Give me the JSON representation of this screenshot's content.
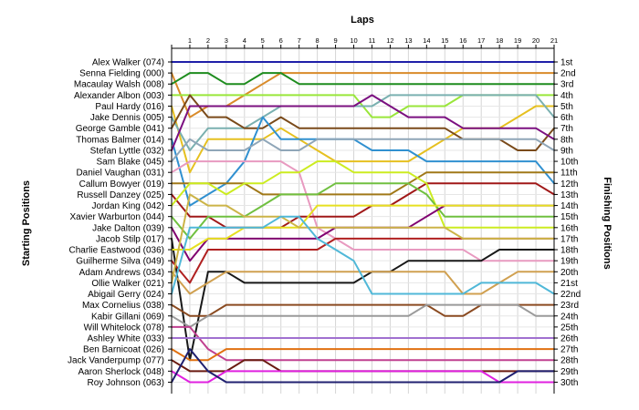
{
  "chart_data": {
    "type": "line",
    "title": "Laps",
    "ylabel_left": "Starting Positions",
    "ylabel_right": "Finishing Positions",
    "x": [
      0,
      1,
      2,
      3,
      4,
      5,
      6,
      7,
      8,
      9,
      10,
      11,
      12,
      13,
      14,
      15,
      16,
      17,
      18,
      19,
      20,
      21
    ],
    "x_tick_labels": [
      "1",
      "2",
      "3",
      "4",
      "5",
      "6",
      "7",
      "8",
      "9",
      "10",
      "11",
      "12",
      "13",
      "14",
      "15",
      "16",
      "17",
      "18",
      "19",
      "20",
      "21"
    ],
    "starting_labels": [
      "Alex Walker (074)",
      "Senna Fielding (000)",
      "Macaulay Walsh (008)",
      "Alexander Albon (003)",
      "Paul Hardy (016)",
      "Jake Dennis (005)",
      "George Gamble (041)",
      "Thomas Balmer (014)",
      "Stefan Lyttle (032)",
      "Sam Blake (045)",
      "Daniel Vaughan (031)",
      "Callum Bowyer (019)",
      "Russell Danzey (025)",
      "Jordan King (042)",
      "Xavier Warburton (044)",
      "Jake Dalton (039)",
      "Jacob Stilp (017)",
      "Charlie Eastwood (036)",
      "Guilherme Silva (049)",
      "Adam Andrews (034)",
      "Ollie Walker (021)",
      "Abigail Gerry (024)",
      "Max Cornelius (038)",
      "Kabir Gillani (069)",
      "Will Whitelock (078)",
      "Ashley White (033)",
      "Ben Barnicoat (026)",
      "Jack Vanderpump (077)",
      "Aaron Sherlock (048)",
      "Roy Johnson (063)"
    ],
    "finishing_labels": [
      "1st",
      "2nd",
      "3rd",
      "4th",
      "5th",
      "6th",
      "7th",
      "8th",
      "9th",
      "10th",
      "11th",
      "12th",
      "13th",
      "14th",
      "15th",
      "16th",
      "17th",
      "18th",
      "19th",
      "20th",
      "21st",
      "22nd",
      "23rd",
      "24th",
      "25th",
      "26th",
      "27th",
      "28th",
      "29th",
      "30th"
    ],
    "series": [
      {
        "color": "#1f1fa8",
        "values": [
          1,
          1,
          1,
          1,
          1,
          1,
          1,
          1,
          1,
          1,
          1,
          1,
          1,
          1,
          1,
          1,
          1,
          1,
          1,
          1,
          1,
          1
        ]
      },
      {
        "color": "#d98b2a",
        "values": [
          2,
          6,
          5,
          5,
          4,
          3,
          2,
          2,
          2,
          2,
          2,
          2,
          2,
          2,
          2,
          2,
          2,
          2,
          2,
          2,
          2,
          2
        ]
      },
      {
        "color": "#1e8c1e",
        "values": [
          3,
          2,
          2,
          3,
          3,
          2,
          2,
          3,
          3,
          3,
          3,
          3,
          3,
          3,
          3,
          3,
          3,
          3,
          3,
          3,
          3,
          3
        ]
      },
      {
        "color": "#99e63a",
        "values": [
          4,
          4,
          4,
          4,
          4,
          4,
          4,
          4,
          4,
          4,
          4,
          6,
          6,
          5,
          5,
          5,
          4,
          4,
          4,
          4,
          4,
          4
        ]
      },
      {
        "color": "#e6c020",
        "values": [
          5,
          11,
          8,
          8,
          8,
          8,
          7,
          8,
          9,
          10,
          10,
          10,
          10,
          10,
          9,
          8,
          7,
          7,
          7,
          6,
          5,
          5
        ]
      },
      {
        "color": "#7ab0b0",
        "values": [
          6,
          9,
          7,
          7,
          7,
          6,
          5,
          5,
          5,
          5,
          5,
          5,
          4,
          4,
          4,
          4,
          4,
          4,
          4,
          4,
          4,
          6
        ]
      },
      {
        "color": "#7a4a1a",
        "values": [
          7,
          4,
          6,
          6,
          7,
          7,
          6,
          7,
          7,
          7,
          7,
          7,
          7,
          7,
          7,
          7,
          8,
          8,
          8,
          9,
          9,
          7
        ]
      },
      {
        "color": "#3090d0",
        "values": [
          8,
          14,
          13,
          12,
          10,
          6,
          8,
          8,
          8,
          8,
          8,
          9,
          9,
          9,
          10,
          10,
          10,
          10,
          10,
          10,
          10,
          12
        ]
      },
      {
        "color": "#7b1080",
        "values": [
          9,
          5,
          5,
          5,
          5,
          5,
          5,
          5,
          5,
          5,
          5,
          4,
          5,
          6,
          6,
          6,
          7,
          7,
          7,
          7,
          7,
          8
        ]
      },
      {
        "color": "#8fa6b8",
        "values": [
          10,
          8,
          9,
          9,
          9,
          8,
          9,
          9,
          8,
          8,
          8,
          8,
          8,
          8,
          8,
          8,
          8,
          8,
          8,
          8,
          8,
          9
        ]
      },
      {
        "color": "#e89ac0",
        "values": [
          11,
          10,
          10,
          10,
          10,
          10,
          10,
          11,
          16,
          17,
          18,
          18,
          18,
          18,
          18,
          18,
          18,
          19,
          19,
          19,
          19,
          19
        ]
      },
      {
        "color": "#a07818",
        "values": [
          12,
          12,
          12,
          12,
          12,
          13,
          13,
          13,
          13,
          13,
          13,
          13,
          13,
          12,
          11,
          11,
          11,
          11,
          11,
          11,
          11,
          11
        ]
      },
      {
        "color": "#a01818",
        "values": [
          13,
          15,
          15,
          16,
          16,
          16,
          16,
          15,
          15,
          15,
          15,
          14,
          14,
          13,
          12,
          12,
          12,
          12,
          12,
          12,
          12,
          13
        ]
      },
      {
        "color": "#ccec20",
        "values": [
          14,
          12,
          12,
          13,
          12,
          12,
          11,
          11,
          10,
          10,
          11,
          11,
          11,
          11,
          12,
          16,
          16,
          16,
          16,
          16,
          16,
          16
        ]
      },
      {
        "color": "#70c040",
        "values": [
          15,
          17,
          15,
          15,
          15,
          14,
          13,
          13,
          13,
          12,
          12,
          12,
          12,
          12,
          13,
          15,
          15,
          15,
          15,
          15,
          15,
          15
        ]
      },
      {
        "color": "#800070",
        "values": [
          16,
          19,
          17,
          17,
          17,
          17,
          17,
          17,
          17,
          16,
          16,
          16,
          16,
          16,
          15,
          14,
          14,
          14,
          14,
          14,
          14,
          14
        ]
      },
      {
        "color": "#181818",
        "values": [
          17,
          28,
          20,
          20,
          21,
          21,
          21,
          21,
          21,
          21,
          21,
          20,
          20,
          19,
          19,
          19,
          19,
          19,
          18,
          18,
          18,
          18
        ]
      },
      {
        "color": "#e6e020",
        "values": [
          18,
          18,
          17,
          17,
          16,
          16,
          16,
          16,
          14,
          14,
          14,
          14,
          14,
          14,
          14,
          14,
          14,
          14,
          14,
          14,
          14,
          14
        ]
      },
      {
        "color": "#b02020",
        "values": [
          19,
          21,
          18,
          18,
          18,
          18,
          18,
          18,
          18,
          17,
          17,
          17,
          17,
          17,
          17,
          17,
          17,
          17,
          17,
          17,
          17,
          17
        ]
      },
      {
        "color": "#d0a050",
        "values": [
          20,
          22,
          21,
          20,
          20,
          20,
          20,
          20,
          20,
          20,
          20,
          20,
          20,
          20,
          20,
          20,
          22,
          22,
          21,
          20,
          20,
          20
        ]
      },
      {
        "color": "#ccb448",
        "values": [
          21,
          13,
          14,
          14,
          15,
          15,
          15,
          16,
          16,
          16,
          16,
          16,
          16,
          16,
          16,
          16,
          17,
          17,
          17,
          17,
          17,
          17
        ]
      },
      {
        "color": "#50b8d8",
        "values": [
          22,
          16,
          16,
          16,
          16,
          16,
          15,
          15,
          17,
          18,
          19,
          22,
          22,
          22,
          22,
          22,
          22,
          21,
          21,
          21,
          21,
          22
        ]
      },
      {
        "color": "#8a4a20",
        "values": [
          23,
          24,
          24,
          23,
          23,
          23,
          23,
          23,
          23,
          23,
          23,
          23,
          23,
          23,
          23,
          24,
          24,
          23,
          23,
          23,
          23,
          23
        ]
      },
      {
        "color": "#9a9a9a",
        "values": [
          24,
          25,
          24,
          24,
          24,
          24,
          24,
          24,
          24,
          24,
          24,
          24,
          24,
          24,
          23,
          23,
          23,
          23,
          23,
          23,
          24,
          24
        ]
      },
      {
        "color": "#c04090",
        "values": [
          25,
          25,
          27,
          28,
          28,
          28,
          28,
          28,
          28,
          28,
          28,
          28,
          28,
          28,
          28,
          28,
          28,
          28,
          28,
          28,
          28,
          28
        ]
      },
      {
        "color": "#a070d0",
        "values": [
          26,
          26,
          26,
          26,
          26,
          26,
          26,
          26,
          26,
          26,
          26,
          26,
          26,
          26,
          26,
          26,
          26,
          26,
          26,
          26,
          26,
          26
        ]
      },
      {
        "color": "#e07010",
        "values": [
          27,
          28,
          28,
          27,
          27,
          27,
          27,
          27,
          27,
          27,
          27,
          27,
          27,
          27,
          27,
          27,
          27,
          27,
          27,
          27,
          27,
          27
        ]
      },
      {
        "color": "#6a1a10",
        "values": [
          28,
          29,
          29,
          29,
          28,
          28,
          29,
          29,
          29,
          29,
          29,
          29,
          29,
          29,
          29,
          29,
          29,
          29,
          29,
          29,
          29,
          29
        ]
      },
      {
        "color": "#e020e0",
        "values": [
          29,
          30,
          30,
          29,
          29,
          29,
          29,
          29,
          29,
          29,
          29,
          29,
          29,
          29,
          29,
          29,
          29,
          29,
          30,
          30,
          30,
          30
        ]
      },
      {
        "color": "#202070",
        "values": [
          30,
          27,
          29,
          30,
          30,
          30,
          30,
          30,
          30,
          30,
          30,
          30,
          30,
          30,
          30,
          30,
          30,
          30,
          30,
          29,
          29,
          29
        ]
      }
    ]
  }
}
